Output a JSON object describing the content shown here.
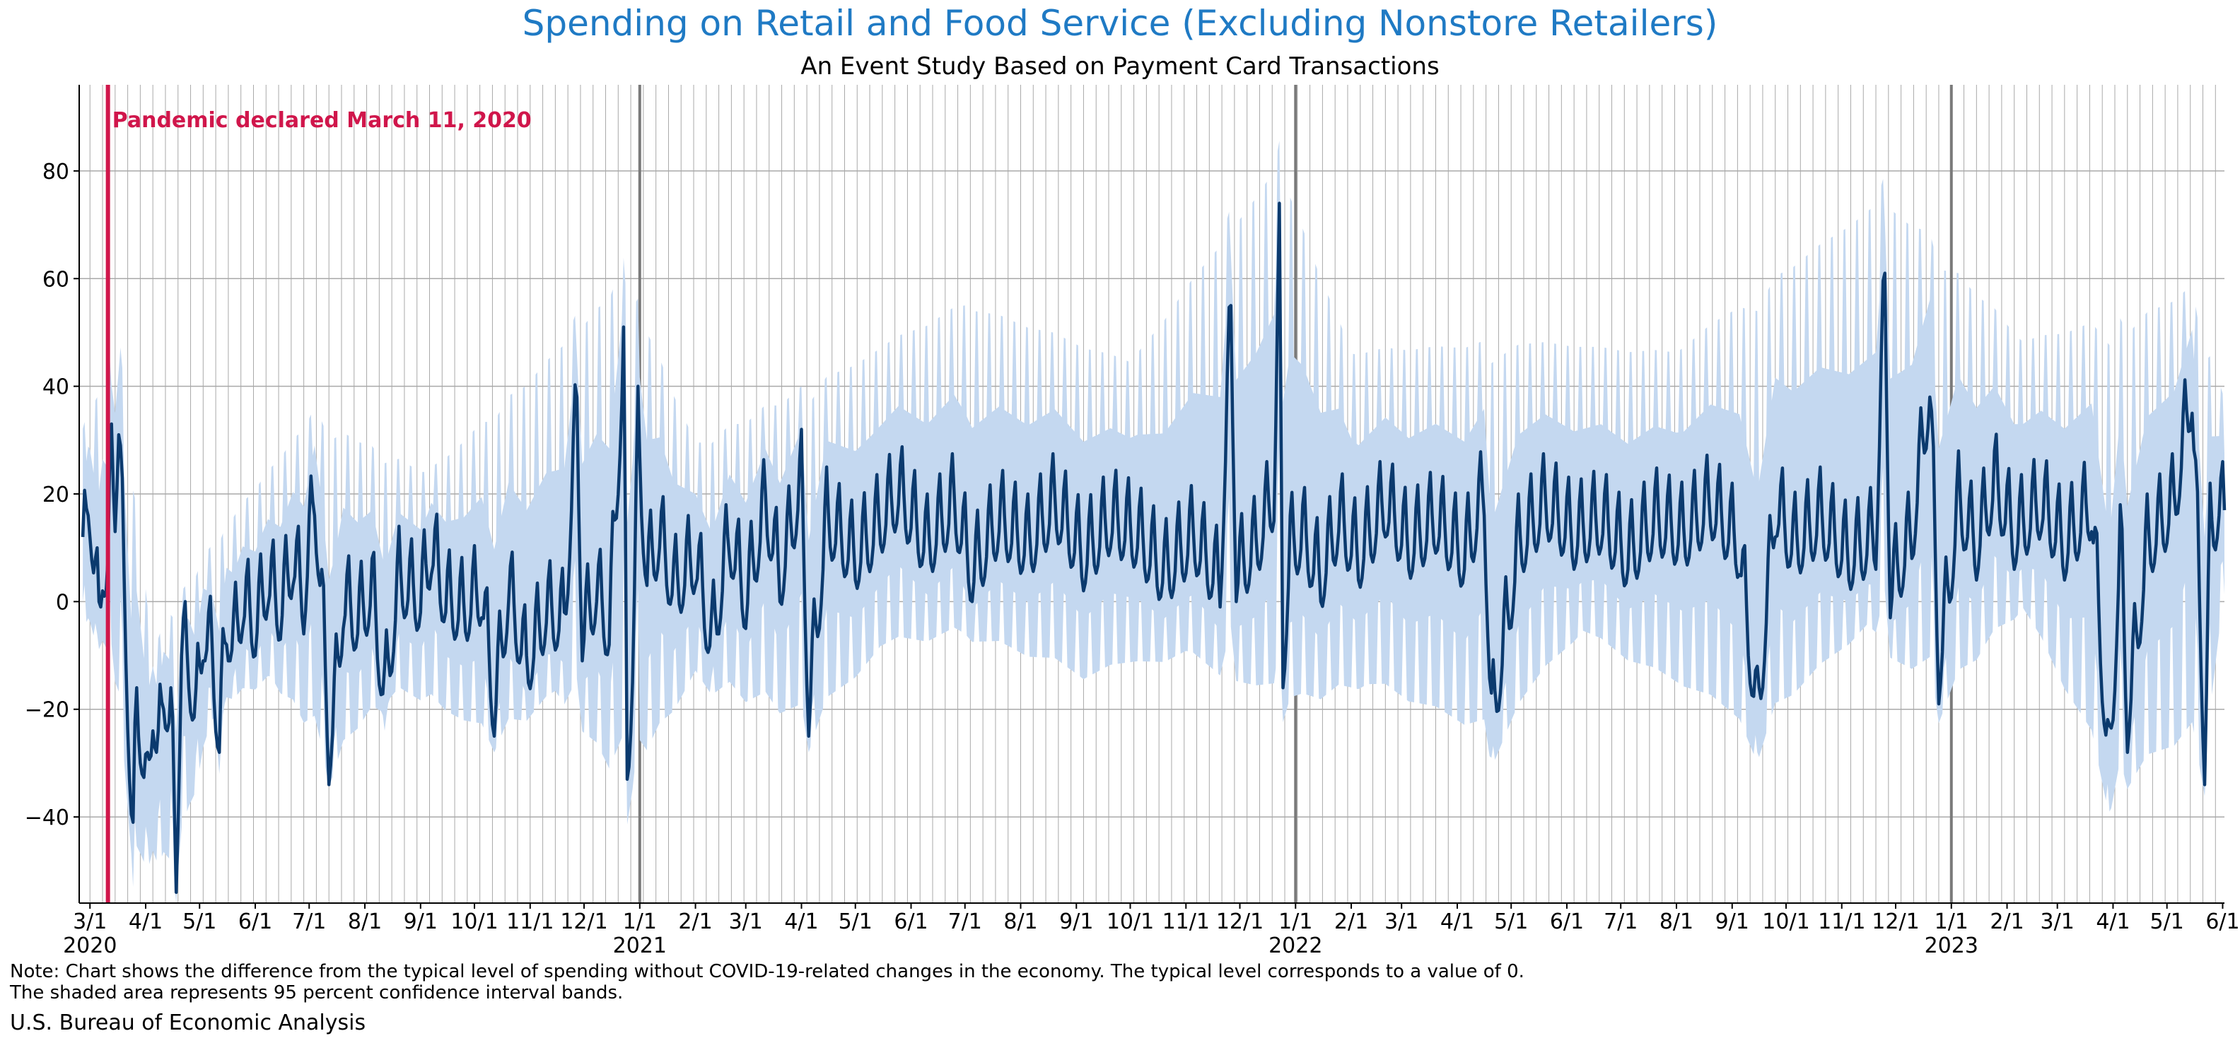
{
  "title": "Spending on Retail and Food Service (Excluding Nonstore Retailers)",
  "subtitle": "An Event Study Based on Payment Card Transactions",
  "note_line1": "Note: Chart shows the difference from the typical level of spending without COVID-19-related changes in the economy. The typical level corresponds to a value of 0.",
  "note_line2": "The shaded area represents 95 percent confidence interval bands.",
  "source": "U.S. Bureau of Economic Analysis",
  "colors": {
    "title": "#1f7ac4",
    "line": "#0b3a6e",
    "band": "#c4d8f0",
    "event": "#d0164b",
    "grid": "#a9a9a9",
    "year_divider": "#7a7a7a"
  },
  "chart_data": {
    "type": "line",
    "title": "Spending on Retail and Food Service (Excluding Nonstore Retailers)",
    "subtitle": "An Event Study Based on Payment Card Transactions",
    "xlabel": "",
    "ylabel": "",
    "x_range": [
      "2020-02-24",
      "2023-06-02"
    ],
    "ylim": [
      -56,
      96
    ],
    "yticks": [
      -40,
      -20,
      0,
      20,
      40,
      60,
      80
    ],
    "grid": true,
    "x_ticks": [
      {
        "date": "2020-03-01",
        "label": "3/1",
        "year": "2020"
      },
      {
        "date": "2020-04-01",
        "label": "4/1"
      },
      {
        "date": "2020-05-01",
        "label": "5/1"
      },
      {
        "date": "2020-06-01",
        "label": "6/1"
      },
      {
        "date": "2020-07-01",
        "label": "7/1"
      },
      {
        "date": "2020-08-01",
        "label": "8/1"
      },
      {
        "date": "2020-09-01",
        "label": "9/1"
      },
      {
        "date": "2020-10-01",
        "label": "10/1"
      },
      {
        "date": "2020-11-01",
        "label": "11/1"
      },
      {
        "date": "2020-12-01",
        "label": "12/1"
      },
      {
        "date": "2021-01-01",
        "label": "1/1",
        "year": "2021"
      },
      {
        "date": "2021-02-01",
        "label": "2/1"
      },
      {
        "date": "2021-03-01",
        "label": "3/1"
      },
      {
        "date": "2021-04-01",
        "label": "4/1"
      },
      {
        "date": "2021-05-01",
        "label": "5/1"
      },
      {
        "date": "2021-06-01",
        "label": "6/1"
      },
      {
        "date": "2021-07-01",
        "label": "7/1"
      },
      {
        "date": "2021-08-01",
        "label": "8/1"
      },
      {
        "date": "2021-09-01",
        "label": "9/1"
      },
      {
        "date": "2021-10-01",
        "label": "10/1"
      },
      {
        "date": "2021-11-01",
        "label": "11/1"
      },
      {
        "date": "2021-12-01",
        "label": "12/1"
      },
      {
        "date": "2022-01-01",
        "label": "1/1",
        "year": "2022"
      },
      {
        "date": "2022-02-01",
        "label": "2/1"
      },
      {
        "date": "2022-03-01",
        "label": "3/1"
      },
      {
        "date": "2022-04-01",
        "label": "4/1"
      },
      {
        "date": "2022-05-01",
        "label": "5/1"
      },
      {
        "date": "2022-06-01",
        "label": "6/1"
      },
      {
        "date": "2022-07-01",
        "label": "7/1"
      },
      {
        "date": "2022-08-01",
        "label": "8/1"
      },
      {
        "date": "2022-09-01",
        "label": "9/1"
      },
      {
        "date": "2022-10-01",
        "label": "10/1"
      },
      {
        "date": "2022-11-01",
        "label": "11/1"
      },
      {
        "date": "2022-12-01",
        "label": "12/1"
      },
      {
        "date": "2023-01-01",
        "label": "1/1",
        "year": "2023"
      },
      {
        "date": "2023-02-01",
        "label": "2/1"
      },
      {
        "date": "2023-03-01",
        "label": "3/1"
      },
      {
        "date": "2023-04-01",
        "label": "4/1"
      },
      {
        "date": "2023-05-01",
        "label": "5/1"
      },
      {
        "date": "2023-06-01",
        "label": "6/1"
      }
    ],
    "event": {
      "date": "2020-03-11",
      "label": "Pandemic declared March 11, 2020"
    },
    "series": [
      {
        "values": [
          [
            "2020-02-26",
            6
          ],
          [
            "2020-02-29",
            20
          ],
          [
            "2020-03-01",
            18
          ],
          [
            "2020-03-04",
            2
          ],
          [
            "2020-03-06",
            -2
          ],
          [
            "2020-03-08",
            8
          ],
          [
            "2020-03-11",
            2
          ],
          [
            "2020-03-13",
            31
          ],
          [
            "2020-03-15",
            19
          ],
          [
            "2020-03-17",
            33
          ],
          [
            "2020-03-20",
            3
          ],
          [
            "2020-03-23",
            -28
          ],
          [
            "2020-03-25",
            -47
          ],
          [
            "2020-03-27",
            -18
          ],
          [
            "2020-03-30",
            -27
          ],
          [
            "2020-04-02",
            -38
          ],
          [
            "2020-04-05",
            -18
          ],
          [
            "2020-04-08",
            -30
          ],
          [
            "2020-04-11",
            -16
          ],
          [
            "2020-04-15",
            -22
          ],
          [
            "2020-04-18",
            -50
          ],
          [
            "2020-04-21",
            -8
          ],
          [
            "2020-04-25",
            -12
          ],
          [
            "2020-04-29",
            -22
          ],
          [
            "2020-05-03",
            -5
          ],
          [
            "2020-05-08",
            -10
          ],
          [
            "2020-05-12",
            -26
          ],
          [
            "2020-05-16",
            -4
          ],
          [
            "2020-05-20",
            -8
          ],
          [
            "2020-05-25",
            0
          ],
          [
            "2020-06-01",
            -5
          ],
          [
            "2020-06-08",
            4
          ],
          [
            "2020-06-15",
            -2
          ],
          [
            "2020-06-22",
            8
          ],
          [
            "2020-06-28",
            0
          ],
          [
            "2020-07-04",
            20
          ],
          [
            "2020-07-08",
            0
          ],
          [
            "2020-07-12",
            -28
          ],
          [
            "2020-07-15",
            -20
          ],
          [
            "2020-07-20",
            0
          ],
          [
            "2020-07-28",
            -4
          ],
          [
            "2020-08-05",
            2
          ],
          [
            "2020-08-12",
            -18
          ],
          [
            "2020-08-20",
            4
          ],
          [
            "2020-09-01",
            0
          ],
          [
            "2020-09-07",
            10
          ],
          [
            "2020-09-15",
            0
          ],
          [
            "2020-09-25",
            -2
          ],
          [
            "2020-10-05",
            2
          ],
          [
            "2020-10-12",
            -20
          ],
          [
            "2020-10-20",
            2
          ],
          [
            "2020-10-30",
            -12
          ],
          [
            "2020-11-10",
            -2
          ],
          [
            "2020-11-20",
            -4
          ],
          [
            "2020-11-27",
            36
          ],
          [
            "2020-11-30",
            -6
          ],
          [
            "2020-12-08",
            2
          ],
          [
            "2020-12-15",
            -6
          ],
          [
            "2020-12-23",
            45
          ],
          [
            "2020-12-25",
            -35
          ],
          [
            "2020-12-28",
            -10
          ],
          [
            "2020-12-31",
            30
          ],
          [
            "2021-01-05",
            5
          ],
          [
            "2021-01-12",
            12
          ],
          [
            "2021-01-20",
            2
          ],
          [
            "2021-02-01",
            8
          ],
          [
            "2021-02-10",
            -8
          ],
          [
            "2021-02-20",
            12
          ],
          [
            "2021-03-01",
            0
          ],
          [
            "2021-03-12",
            18
          ],
          [
            "2021-03-20",
            4
          ],
          [
            "2021-04-01",
            22
          ],
          [
            "2021-04-05",
            -20
          ],
          [
            "2021-04-15",
            15
          ],
          [
            "2021-05-01",
            8
          ],
          [
            "2021-05-10",
            12
          ],
          [
            "2021-05-25",
            20
          ],
          [
            "2021-06-10",
            10
          ],
          [
            "2021-06-25",
            18
          ],
          [
            "2021-07-05",
            5
          ],
          [
            "2021-07-20",
            15
          ],
          [
            "2021-08-05",
            10
          ],
          [
            "2021-08-20",
            18
          ],
          [
            "2021-09-05",
            8
          ],
          [
            "2021-09-20",
            15
          ],
          [
            "2021-10-05",
            12
          ],
          [
            "2021-10-20",
            5
          ],
          [
            "2021-11-05",
            12
          ],
          [
            "2021-11-20",
            3
          ],
          [
            "2021-11-26",
            53
          ],
          [
            "2021-11-29",
            5
          ],
          [
            "2021-12-10",
            10
          ],
          [
            "2021-12-20",
            20
          ],
          [
            "2021-12-23",
            64
          ],
          [
            "2021-12-25",
            -12
          ],
          [
            "2021-12-29",
            10
          ],
          [
            "2022-01-05",
            12
          ],
          [
            "2022-01-15",
            4
          ],
          [
            "2022-01-25",
            15
          ],
          [
            "2022-02-05",
            8
          ],
          [
            "2022-02-20",
            18
          ],
          [
            "2022-03-05",
            10
          ],
          [
            "2022-03-20",
            15
          ],
          [
            "2022-04-05",
            8
          ],
          [
            "2022-04-16",
            20
          ],
          [
            "2022-04-20",
            -23
          ],
          [
            "2022-05-05",
            10
          ],
          [
            "2022-05-20",
            18
          ],
          [
            "2022-06-05",
            12
          ],
          [
            "2022-06-20",
            15
          ],
          [
            "2022-07-05",
            8
          ],
          [
            "2022-07-20",
            15
          ],
          [
            "2022-08-05",
            12
          ],
          [
            "2022-08-20",
            18
          ],
          [
            "2022-09-05",
            10
          ],
          [
            "2022-09-15",
            -22
          ],
          [
            "2022-09-25",
            18
          ],
          [
            "2022-10-05",
            10
          ],
          [
            "2022-10-20",
            15
          ],
          [
            "2022-11-05",
            8
          ],
          [
            "2022-11-20",
            12
          ],
          [
            "2022-11-25",
            59
          ],
          [
            "2022-11-28",
            2
          ],
          [
            "2022-12-10",
            12
          ],
          [
            "2022-12-20",
            40
          ],
          [
            "2022-12-25",
            -13
          ],
          [
            "2023-01-05",
            18
          ],
          [
            "2023-01-15",
            10
          ],
          [
            "2023-01-25",
            22
          ],
          [
            "2023-02-05",
            12
          ],
          [
            "2023-02-20",
            18
          ],
          [
            "2023-03-05",
            10
          ],
          [
            "2023-03-20",
            18
          ],
          [
            "2023-03-30",
            -33
          ],
          [
            "2023-04-05",
            12
          ],
          [
            "2023-04-09",
            -22
          ],
          [
            "2023-04-20",
            10
          ],
          [
            "2023-05-05",
            18
          ],
          [
            "2023-05-15",
            40
          ],
          [
            "2023-05-22",
            -29
          ],
          [
            "2023-05-25",
            12
          ],
          [
            "2023-05-30",
            18
          ],
          [
            "2023-06-02",
            15
          ]
        ],
        "ci_lower": [
          [
            "2020-02-26",
            -8
          ],
          [
            "2020-03-11",
            -12
          ],
          [
            "2020-03-25",
            -52
          ],
          [
            "2020-04-18",
            -55
          ],
          [
            "2020-05-10",
            -22
          ],
          [
            "2020-06-10",
            -18
          ],
          [
            "2020-07-12",
            -36
          ],
          [
            "2020-08-15",
            -20
          ],
          [
            "2020-10-12",
            -30
          ],
          [
            "2020-11-15",
            -20
          ],
          [
            "2020-12-25",
            -43
          ],
          [
            "2021-02-01",
            -18
          ],
          [
            "2021-04-05",
            -30
          ],
          [
            "2021-05-15",
            -14
          ],
          [
            "2021-07-01",
            -10
          ],
          [
            "2021-09-05",
            -20
          ],
          [
            "2021-11-01",
            -14
          ],
          [
            "2021-12-25",
            -25
          ],
          [
            "2022-02-10",
            -22
          ],
          [
            "2022-04-20",
            -33
          ],
          [
            "2022-06-10",
            -10
          ],
          [
            "2022-09-15",
            -32
          ],
          [
            "2022-11-15",
            -8
          ],
          [
            "2022-12-25",
            -25
          ],
          [
            "2023-02-10",
            -5
          ],
          [
            "2023-03-30",
            -42
          ],
          [
            "2023-04-09",
            -38
          ],
          [
            "2023-05-22",
            -38
          ],
          [
            "2023-06-02",
            -2
          ]
        ],
        "ci_upper": [
          [
            "2020-02-26",
            35
          ],
          [
            "2020-03-17",
            53
          ],
          [
            "2020-04-05",
            -6
          ],
          [
            "2020-05-10",
            14
          ],
          [
            "2020-07-04",
            38
          ],
          [
            "2020-09-05",
            26
          ],
          [
            "2020-11-27",
            56
          ],
          [
            "2020-12-23",
            66
          ],
          [
            "2021-02-01",
            32
          ],
          [
            "2021-04-01",
            42
          ],
          [
            "2021-07-01",
            60
          ],
          [
            "2021-10-01",
            48
          ],
          [
            "2021-11-26",
            76
          ],
          [
            "2021-12-23",
            88
          ],
          [
            "2022-02-01",
            50
          ],
          [
            "2022-05-01",
            52
          ],
          [
            "2022-08-01",
            50
          ],
          [
            "2022-11-25",
            82
          ],
          [
            "2022-12-25",
            70
          ],
          [
            "2023-02-10",
            52
          ],
          [
            "2023-05-15",
            61
          ],
          [
            "2023-06-02",
            40
          ]
        ]
      }
    ]
  }
}
